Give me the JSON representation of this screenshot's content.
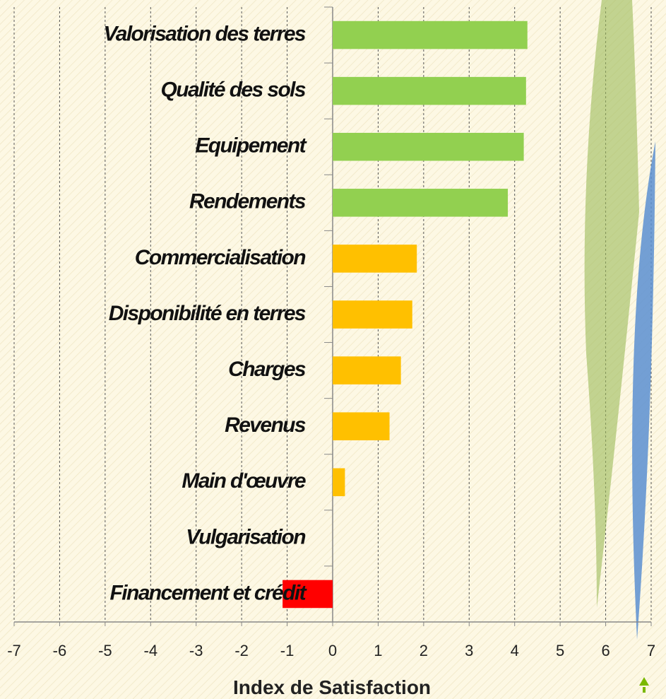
{
  "chart_data": {
    "type": "hbar",
    "x_label": "Index de Satisfaction",
    "categories": [
      "Valorisation des terres",
      "Qualité des sols",
      "Equipement",
      "Rendements",
      "Commercialisation",
      "Disponibilité en terres",
      "Charges",
      "Revenus",
      "Main d'œuvre",
      "Vulgarisation",
      "Financement et crédit"
    ],
    "values": [
      4.28,
      4.25,
      4.2,
      3.85,
      1.85,
      1.75,
      1.5,
      1.25,
      0.27,
      0,
      -1.1
    ],
    "colors": [
      "#92d050",
      "#92d050",
      "#92d050",
      "#92d050",
      "#ffc000",
      "#ffc000",
      "#ffc000",
      "#ffc000",
      "#ffc000",
      "#ffc000",
      "#ff0000"
    ],
    "xlim": [
      -7,
      7
    ],
    "xticks": [
      -7,
      -6,
      -5,
      -4,
      -3,
      -2,
      -1,
      0,
      1,
      2,
      3,
      4,
      5,
      6,
      7
    ],
    "grid": true
  }
}
